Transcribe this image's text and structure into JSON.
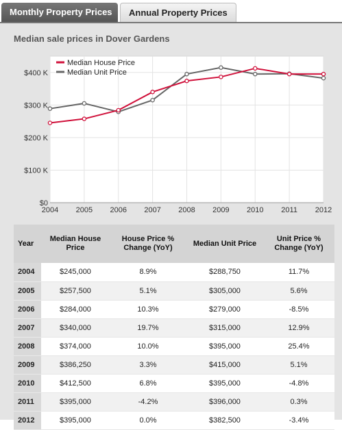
{
  "tabs": [
    {
      "label": "Monthly Property Prices",
      "active": true
    },
    {
      "label": "Annual Property Prices",
      "active": false
    }
  ],
  "panel": {
    "title": "Median sale prices in Dover Gardens"
  },
  "chart_data": {
    "type": "line",
    "title": "Median sale prices in Dover Gardens",
    "x": [
      "2004",
      "2005",
      "2006",
      "2007",
      "2008",
      "2009",
      "2010",
      "2011",
      "2012"
    ],
    "series": [
      {
        "name": "Median House Price",
        "color": "#d0103a",
        "values": [
          245000,
          257500,
          284000,
          340000,
          374000,
          386250,
          412500,
          395000,
          395000
        ]
      },
      {
        "name": "Median Unit Price",
        "color": "#666666",
        "values": [
          288750,
          305000,
          279000,
          315000,
          395000,
          415000,
          395000,
          396000,
          382500
        ]
      }
    ],
    "ylim": [
      0,
      450000
    ],
    "y_ticks": [
      0,
      100000,
      200000,
      300000,
      400000
    ],
    "y_tick_labels": [
      "$0",
      "$100 K",
      "$200 K",
      "$300 K",
      "$400 K"
    ],
    "grid": true,
    "legend_position": "top-left"
  },
  "table": {
    "headers": [
      "Year",
      "Median House Price",
      "House Price % Change (YoY)",
      "Median Unit Price",
      "Unit Price % Change (YoY)"
    ],
    "rows": [
      [
        "2004",
        "$245,000",
        "8.9%",
        "$288,750",
        "11.7%"
      ],
      [
        "2005",
        "$257,500",
        "5.1%",
        "$305,000",
        "5.6%"
      ],
      [
        "2006",
        "$284,000",
        "10.3%",
        "$279,000",
        "-8.5%"
      ],
      [
        "2007",
        "$340,000",
        "19.7%",
        "$315,000",
        "12.9%"
      ],
      [
        "2008",
        "$374,000",
        "10.0%",
        "$395,000",
        "25.4%"
      ],
      [
        "2009",
        "$386,250",
        "3.3%",
        "$415,000",
        "5.1%"
      ],
      [
        "2010",
        "$412,500",
        "6.8%",
        "$395,000",
        "-4.8%"
      ],
      [
        "2011",
        "$395,000",
        "-4.2%",
        "$396,000",
        "0.3%"
      ],
      [
        "2012",
        "$395,000",
        "0.0%",
        "$382,500",
        "-3.4%"
      ]
    ]
  }
}
